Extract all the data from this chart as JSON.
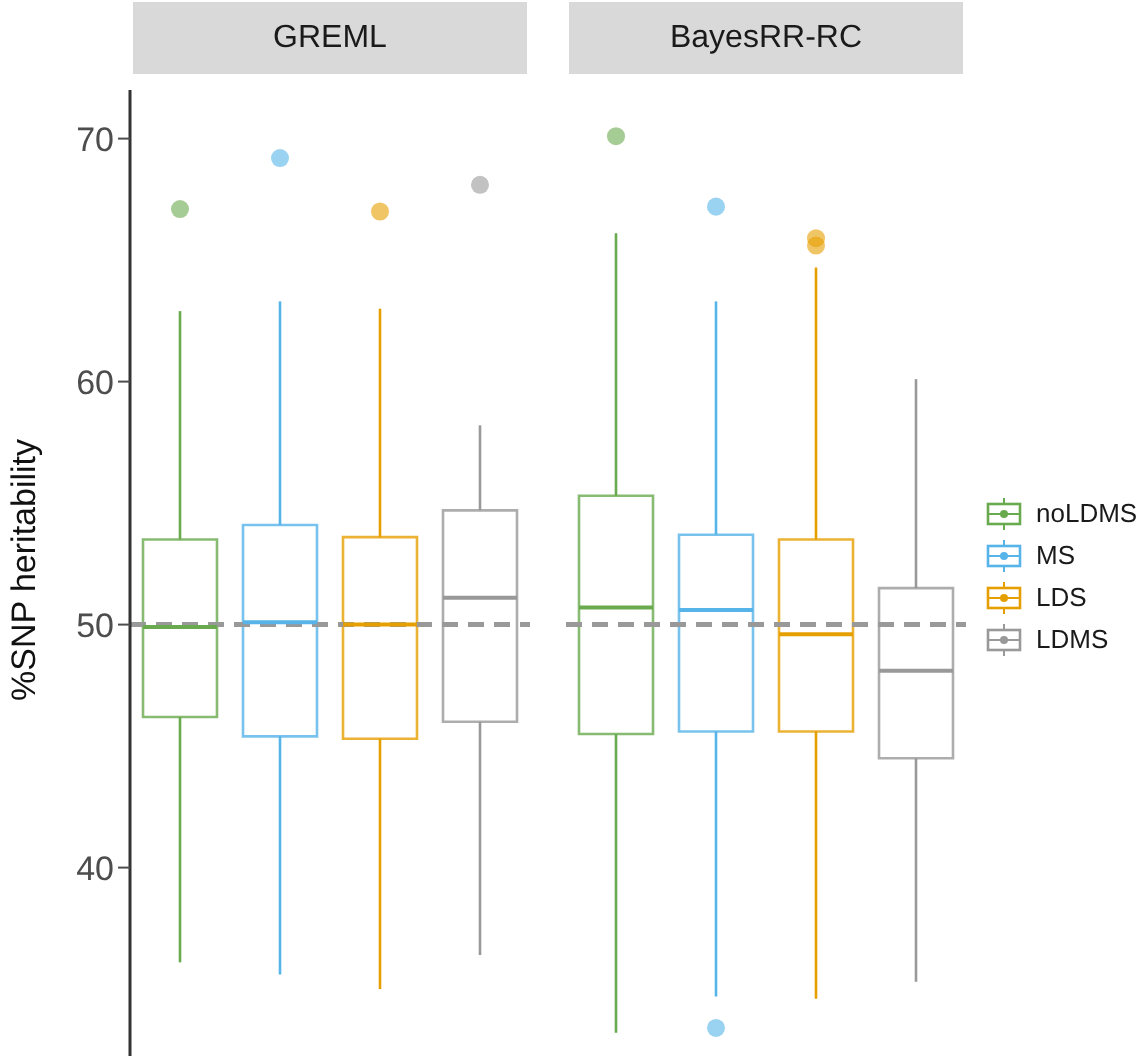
{
  "chart_data": {
    "type": "box",
    "ylabel": "%SNP heritability",
    "categories": [
      "GREML",
      "BayesRR-RC"
    ],
    "ylim": [
      32,
      72
    ],
    "yticks": [
      40,
      50,
      60,
      70
    ],
    "legend": "right",
    "ref_lines": [
      {
        "axis": "y",
        "value": 50,
        "color": "#999999",
        "line_style": "dashed"
      }
    ],
    "series": [
      {
        "name": "noLDMS",
        "color": "#6aaa4f",
        "boxes": [
          {
            "low": 36.1,
            "q1": 46.2,
            "median": 49.9,
            "q3": 53.5,
            "high": 62.9,
            "outliers": [
              67.1
            ]
          },
          {
            "low": 33.2,
            "q1": 45.5,
            "median": 50.7,
            "q3": 55.3,
            "high": 66.1,
            "outliers": [
              70.1
            ]
          }
        ]
      },
      {
        "name": "MS",
        "color": "#56b4e9",
        "boxes": [
          {
            "low": 35.6,
            "q1": 45.4,
            "median": 50.1,
            "q3": 54.1,
            "high": 63.3,
            "outliers": [
              69.2
            ]
          },
          {
            "low": 34.7,
            "q1": 45.6,
            "median": 50.6,
            "q3": 53.7,
            "high": 63.3,
            "outliers": [
              67.2,
              33.4
            ]
          }
        ]
      },
      {
        "name": "LDS",
        "color": "#e69f00",
        "boxes": [
          {
            "low": 35.0,
            "q1": 45.3,
            "median": 50.0,
            "q3": 53.6,
            "high": 63.0,
            "outliers": [
              67.0
            ]
          },
          {
            "low": 34.6,
            "q1": 45.6,
            "median": 49.6,
            "q3": 53.5,
            "high": 64.7,
            "outliers": [
              65.9,
              65.6
            ]
          }
        ]
      },
      {
        "name": "LDMS",
        "color": "#999999",
        "boxes": [
          {
            "low": 36.4,
            "q1": 46.0,
            "median": 51.1,
            "q3": 54.7,
            "high": 58.2,
            "outliers": [
              68.1
            ]
          },
          {
            "low": 35.3,
            "q1": 44.5,
            "median": 48.1,
            "q3": 51.5,
            "high": 60.1
          }
        ]
      }
    ]
  }
}
